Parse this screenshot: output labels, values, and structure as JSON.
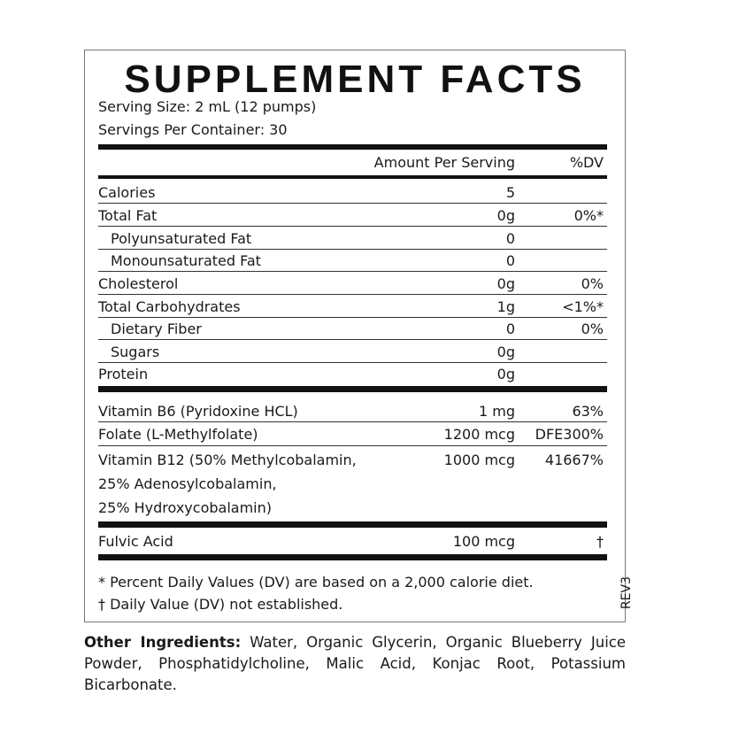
{
  "title": "SUPPLEMENT FACTS",
  "serving_size": "Serving Size: 2 mL (12 pumps)",
  "servings_per_container": "Servings Per Container: 30",
  "header": {
    "amount": "Amount Per Serving",
    "dv": "%DV"
  },
  "nutrients": [
    {
      "name": "Calories",
      "amount": "5",
      "dv": ""
    },
    {
      "name": "Total Fat",
      "amount": "0g",
      "dv": "0%*"
    },
    {
      "name": "Polyunsaturated Fat",
      "amount": "0",
      "dv": ""
    },
    {
      "name": "Monounsaturated Fat",
      "amount": "0",
      "dv": ""
    },
    {
      "name": "Cholesterol",
      "amount": "0g",
      "dv": "0%"
    },
    {
      "name": "Total Carbohydrates",
      "amount": "1g",
      "dv": "<1%*"
    },
    {
      "name": "Dietary Fiber",
      "amount": "0",
      "dv": "0%"
    },
    {
      "name": "Sugars",
      "amount": "0g",
      "dv": ""
    },
    {
      "name": "Protein",
      "amount": "0g",
      "dv": ""
    }
  ],
  "vitamins": [
    {
      "name": "Vitamin B6 (Pyridoxine HCL)",
      "amount": "1 mg",
      "dv": "63%"
    },
    {
      "name": "Folate (L-Methylfolate)",
      "amount": "1200 mcg",
      "dv": "DFE300%"
    },
    {
      "name": "Vitamin B12 (50% Methylcobalamin,",
      "name2": "25% Adenosylcobalamin,",
      "name3": "25% Hydroxycobalamin)",
      "amount": "1000 mcg",
      "dv": "41667%"
    }
  ],
  "other_nutrient": {
    "name": "Fulvic Acid",
    "amount": "100 mcg",
    "dv": "†"
  },
  "footnotes": [
    "* Percent Daily Values (DV) are based on a 2,000 calorie diet.",
    "† Daily Value (DV) not established."
  ],
  "revision": "REV3",
  "other_ingredients": {
    "label": "Other Ingredients:",
    "text": " Water, Organic Glycerin, Organic Blueberry Juice Powder, Phosphatidylcholine, Malic Acid, Konjac Root, Potassium Bicarbonate."
  }
}
